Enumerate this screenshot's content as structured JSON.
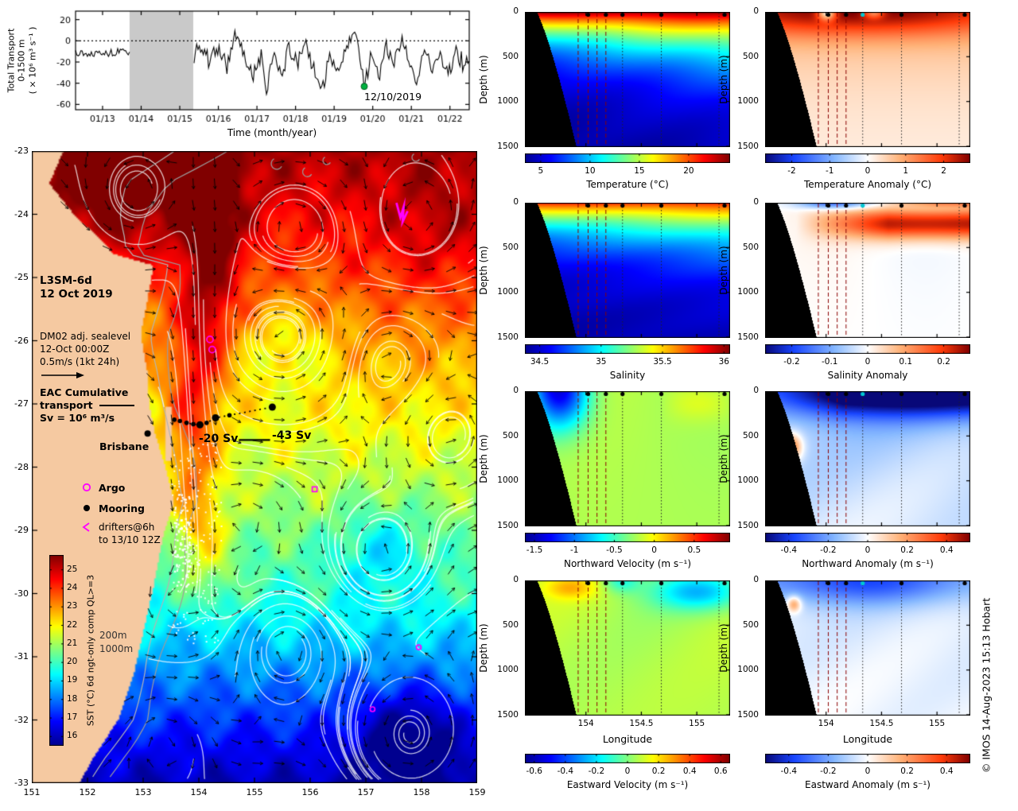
{
  "copyright": "© IMOS 14-Aug-2023 15:13 Hobart",
  "colormaps": {
    "jet": [
      [
        0,
        0,
        0,
        143
      ],
      [
        0.125,
        0,
        0,
        255
      ],
      [
        0.375,
        0,
        255,
        255
      ],
      [
        0.625,
        255,
        255,
        0
      ],
      [
        0.875,
        255,
        0,
        0
      ],
      [
        1,
        128,
        0,
        0
      ]
    ],
    "div": [
      [
        0,
        8,
        8,
        120
      ],
      [
        0.14,
        25,
        70,
        255
      ],
      [
        0.34,
        135,
        185,
        255
      ],
      [
        0.5,
        255,
        255,
        255
      ],
      [
        0.66,
        255,
        178,
        120
      ],
      [
        0.86,
        255,
        60,
        10
      ],
      [
        1,
        128,
        0,
        0
      ]
    ]
  },
  "chart_data": {
    "transport_timeseries": {
      "type": "line",
      "ylabel_line1": "Total Transport",
      "ylabel_line2": "0-1500 m",
      "ylabel_line3": "( × 10⁶ m³ s⁻¹ )",
      "xlabel": "Time (month/year)",
      "xlim": [
        2012.3,
        2022.5
      ],
      "ylim": [
        -65,
        28
      ],
      "xticks": [
        2013,
        2014,
        2015,
        2016,
        2017,
        2018,
        2019,
        2020,
        2021,
        2022
      ],
      "xtick_labels": [
        "01/13",
        "01/14",
        "01/15",
        "01/16",
        "01/17",
        "01/18",
        "01/19",
        "01/20",
        "01/21",
        "01/22"
      ],
      "yticks": [
        20,
        0,
        -20,
        -40,
        -60
      ],
      "zero_line": true,
      "data_gap_x": [
        2013.7,
        2015.35
      ],
      "gap_fill_color": "#c9c9c9",
      "line_color": "#000000",
      "marker": {
        "x": 2019.78,
        "y": -43,
        "color": "#00b140",
        "label": "12/10/2019"
      },
      "anchors": [
        [
          2012.3,
          -9
        ],
        [
          2012.6,
          -13
        ],
        [
          2012.9,
          -9
        ],
        [
          2013.2,
          -12
        ],
        [
          2013.5,
          -10
        ],
        [
          2013.7,
          -11
        ],
        [
          2015.35,
          -14
        ],
        [
          2015.55,
          -6
        ],
        [
          2015.8,
          -20
        ],
        [
          2016.0,
          -4
        ],
        [
          2016.2,
          -26
        ],
        [
          2016.45,
          6
        ],
        [
          2016.7,
          -18
        ],
        [
          2016.9,
          -36
        ],
        [
          2017.1,
          -12
        ],
        [
          2017.25,
          -48
        ],
        [
          2017.45,
          -10
        ],
        [
          2017.65,
          -30
        ],
        [
          2017.85,
          -6
        ],
        [
          2018.05,
          -24
        ],
        [
          2018.25,
          -2
        ],
        [
          2018.5,
          -30
        ],
        [
          2018.7,
          -46
        ],
        [
          2018.9,
          -12
        ],
        [
          2019.1,
          -28
        ],
        [
          2019.35,
          -8
        ],
        [
          2019.55,
          14
        ],
        [
          2019.68,
          -18
        ],
        [
          2019.78,
          -43
        ],
        [
          2019.95,
          -12
        ],
        [
          2020.15,
          -32
        ],
        [
          2020.35,
          -6
        ],
        [
          2020.55,
          -24
        ],
        [
          2020.75,
          2
        ],
        [
          2020.95,
          -20
        ],
        [
          2021.15,
          -36
        ],
        [
          2021.35,
          -8
        ],
        [
          2021.55,
          -28
        ],
        [
          2021.75,
          -14
        ],
        [
          2021.95,
          -30
        ],
        [
          2022.15,
          -10
        ],
        [
          2022.35,
          -22
        ],
        [
          2022.5,
          -16
        ]
      ],
      "noise": {
        "seed": 13,
        "amp": 6.5,
        "pre_gap_amp": 3,
        "n": 300,
        "clip": [
          -58,
          22
        ]
      }
    },
    "sst_map": {
      "type": "heatmap",
      "lonlim": [
        151,
        159
      ],
      "latlim": [
        -33,
        -23
      ],
      "xticks": [
        151,
        152,
        153,
        154,
        155,
        156,
        157,
        158,
        159
      ],
      "yticks": [
        -23,
        -24,
        -25,
        -26,
        -27,
        -28,
        -29,
        -30,
        -31,
        -32,
        -33
      ],
      "land_color": "#f5c9a1",
      "colorbar": {
        "label": "SST (°C) 6d ngt-only comp QL>=3",
        "ticks": [
          25,
          24,
          23,
          22,
          21,
          20,
          19,
          18,
          17,
          16
        ],
        "domain": [
          15.5,
          25.8
        ]
      },
      "annotations": {
        "title_line1": "L3SM-6d",
        "title_line2": "12 Oct 2019",
        "field_line1": "DM02 adj. sealevel",
        "field_line2": "12-Oct 00:00Z",
        "field_line3": "0.5m/s (1kt 24h)",
        "eac_line1": "EAC Cumulative",
        "eac_line2": "transport",
        "eac_line3": "Sv = 10⁶ m³/s",
        "city": "Brisbane",
        "transport_inner": "-20 Sv",
        "transport_outer": "-43 Sv"
      },
      "legend": {
        "argo": "Argo",
        "mooring": "Mooring",
        "drifters_line1": "drifters@6h",
        "drifters_line2": "to 13/10 12Z"
      },
      "isobath_labels": [
        "200m",
        "1000m"
      ],
      "markers": {
        "argo_floats": [
          [
            154.2,
            -25.98
          ],
          [
            154.24,
            -26.14
          ]
        ],
        "mooring_transect": [
          [
            153.56,
            -27.25
          ],
          [
            153.66,
            -27.27
          ],
          [
            153.78,
            -27.3
          ],
          [
            153.9,
            -27.32
          ],
          [
            154.02,
            -27.33
          ],
          [
            154.14,
            -27.3
          ],
          [
            154.3,
            -27.22
          ],
          [
            154.55,
            -27.18
          ],
          [
            155.32,
            -27.05
          ]
        ],
        "large_moorings": [
          [
            154.02,
            -27.33
          ],
          [
            154.3,
            -27.22
          ],
          [
            155.32,
            -27.05
          ]
        ],
        "label_line": [
          [
            154.72,
            -27.57
          ],
          [
            155.28,
            -27.57
          ]
        ],
        "brisbane": [
          153.08,
          -27.47
        ],
        "drifter_cluster": [
          [
            157.55,
            -23.82
          ],
          [
            157.62,
            -24.05
          ],
          [
            157.68,
            -23.88
          ],
          [
            157.66,
            -24.12
          ],
          [
            157.75,
            -23.95
          ]
        ],
        "magenta_square": [
          [
            156.08,
            -28.35
          ]
        ],
        "magenta_small": [
          [
            157.95,
            -30.85
          ],
          [
            157.12,
            -31.83
          ]
        ]
      },
      "coastline": [
        [
          -23,
          151.55
        ],
        [
          -23.5,
          151.3
        ],
        [
          -24,
          151.75
        ],
        [
          -24.45,
          152.3
        ],
        [
          -24.62,
          152.45
        ],
        [
          -24.8,
          153.18
        ],
        [
          -25.3,
          153.08
        ],
        [
          -25.9,
          152.95
        ],
        [
          -26.5,
          153.07
        ],
        [
          -27,
          153.1
        ],
        [
          -27.45,
          153.2
        ],
        [
          -27.95,
          153.38
        ],
        [
          -28.55,
          153.55
        ],
        [
          -29.1,
          153.35
        ],
        [
          -29.9,
          153.18
        ],
        [
          -30.6,
          153.0
        ],
        [
          -31.3,
          152.82
        ],
        [
          -32,
          152.55
        ],
        [
          -32.6,
          152.1
        ],
        [
          -33,
          151.85
        ]
      ]
    },
    "section_overlays": {
      "lon_range": [
        153.45,
        155.3
      ],
      "depth_range": [
        0,
        1500
      ],
      "profile_lines": [
        {
          "lon": 153.93,
          "style": "dashed",
          "color": "#8b0000"
        },
        {
          "lon": 154.02,
          "style": "dashed",
          "color": "#8b0000"
        },
        {
          "lon": 154.1,
          "style": "dashed",
          "color": "#8b0000"
        },
        {
          "lon": 154.18,
          "style": "dashed",
          "color": "#8b0000"
        },
        {
          "lon": 154.33,
          "style": "dotted",
          "color": "#222222"
        },
        {
          "lon": 154.68,
          "style": "dotted",
          "color": "#222222"
        },
        {
          "lon": 155.2,
          "style": "dotted",
          "color": "#222222"
        }
      ],
      "top_markers": [
        154.02,
        154.18,
        154.33,
        154.68,
        155.25
      ]
    },
    "sections": [
      {
        "id": "temperature",
        "col": 0,
        "row": 0,
        "field": "temp",
        "cmap": "jet",
        "domain": [
          3.4,
          24.2
        ],
        "cbar_ticks": [
          5,
          10,
          15,
          20
        ],
        "cbar_label": "Temperature (°C)",
        "ylabel": "Depth (m)",
        "yticks": [
          0,
          500,
          1000,
          1500
        ]
      },
      {
        "id": "temperature-anomaly",
        "col": 1,
        "row": 0,
        "field": "tanom",
        "cmap": "div",
        "domain": [
          -2.7,
          2.7
        ],
        "cbar_ticks": [
          -2,
          -1,
          0,
          1,
          2
        ],
        "cbar_label": "Temperature Anomaly (°C)",
        "ylabel": "Depth (m)",
        "yticks": [
          0,
          500,
          1000,
          1500
        ]
      },
      {
        "id": "salinity",
        "col": 0,
        "row": 1,
        "field": "sal",
        "cmap": "jet",
        "domain": [
          34.38,
          36.05
        ],
        "cbar_ticks": [
          34.5,
          35,
          35.5,
          36
        ],
        "cbar_label": "Salinity",
        "ylabel": "Depth (m)",
        "yticks": [
          0,
          500,
          1000,
          1500
        ]
      },
      {
        "id": "salinity-anomaly",
        "col": 1,
        "row": 1,
        "field": "sanom",
        "cmap": "div",
        "domain": [
          -0.27,
          0.27
        ],
        "cbar_ticks": [
          -0.2,
          -0.1,
          0,
          0.1,
          0.2
        ],
        "cbar_label": "Salinity Anomaly",
        "ylabel": "Depth (m)",
        "yticks": [
          0,
          500,
          1000,
          1500
        ]
      },
      {
        "id": "northward-velocity",
        "col": 0,
        "row": 2,
        "field": "nvel",
        "cmap": "jet",
        "domain": [
          -1.62,
          0.95
        ],
        "cbar_ticks": [
          -1.5,
          -1,
          -0.5,
          0,
          0.5
        ],
        "cbar_label": "Northward Velocity (m s⁻¹)",
        "ylabel": "Depth (m)",
        "yticks": [
          0,
          500,
          1000,
          1500
        ]
      },
      {
        "id": "northward-anomaly",
        "col": 1,
        "row": 2,
        "field": "nanom",
        "cmap": "div",
        "domain": [
          -0.52,
          0.52
        ],
        "cbar_ticks": [
          -0.4,
          -0.2,
          0,
          0.2,
          0.4
        ],
        "cbar_label": "Northward Anomaly (m s⁻¹)",
        "ylabel": "Depth (m)",
        "yticks": [
          0,
          500,
          1000,
          1500
        ]
      },
      {
        "id": "eastward-velocity",
        "col": 0,
        "row": 3,
        "field": "evel",
        "cmap": "jet",
        "domain": [
          -0.66,
          0.66
        ],
        "cbar_ticks": [
          -0.6,
          -0.4,
          -0.2,
          0,
          0.2,
          0.4,
          0.6
        ],
        "cbar_label": "Eastward Velocity (m s⁻¹)",
        "ylabel": "Depth (m)",
        "yticks": [
          0,
          500,
          1000,
          1500
        ],
        "xlabel": "Longitude",
        "xticks": [
          154,
          154.5,
          155
        ]
      },
      {
        "id": "eastward-anomaly",
        "col": 1,
        "row": 3,
        "field": "eanom",
        "cmap": "div",
        "domain": [
          -0.52,
          0.52
        ],
        "cbar_ticks": [
          -0.4,
          -0.2,
          0,
          0.2,
          0.4
        ],
        "cbar_label": "Eastward Anomaly (m s⁻¹)",
        "ylabel": "Depth (m)",
        "yticks": [
          0,
          500,
          1000,
          1500
        ],
        "xlabel": "Longitude",
        "xticks": [
          154,
          154.5,
          155
        ]
      }
    ]
  }
}
